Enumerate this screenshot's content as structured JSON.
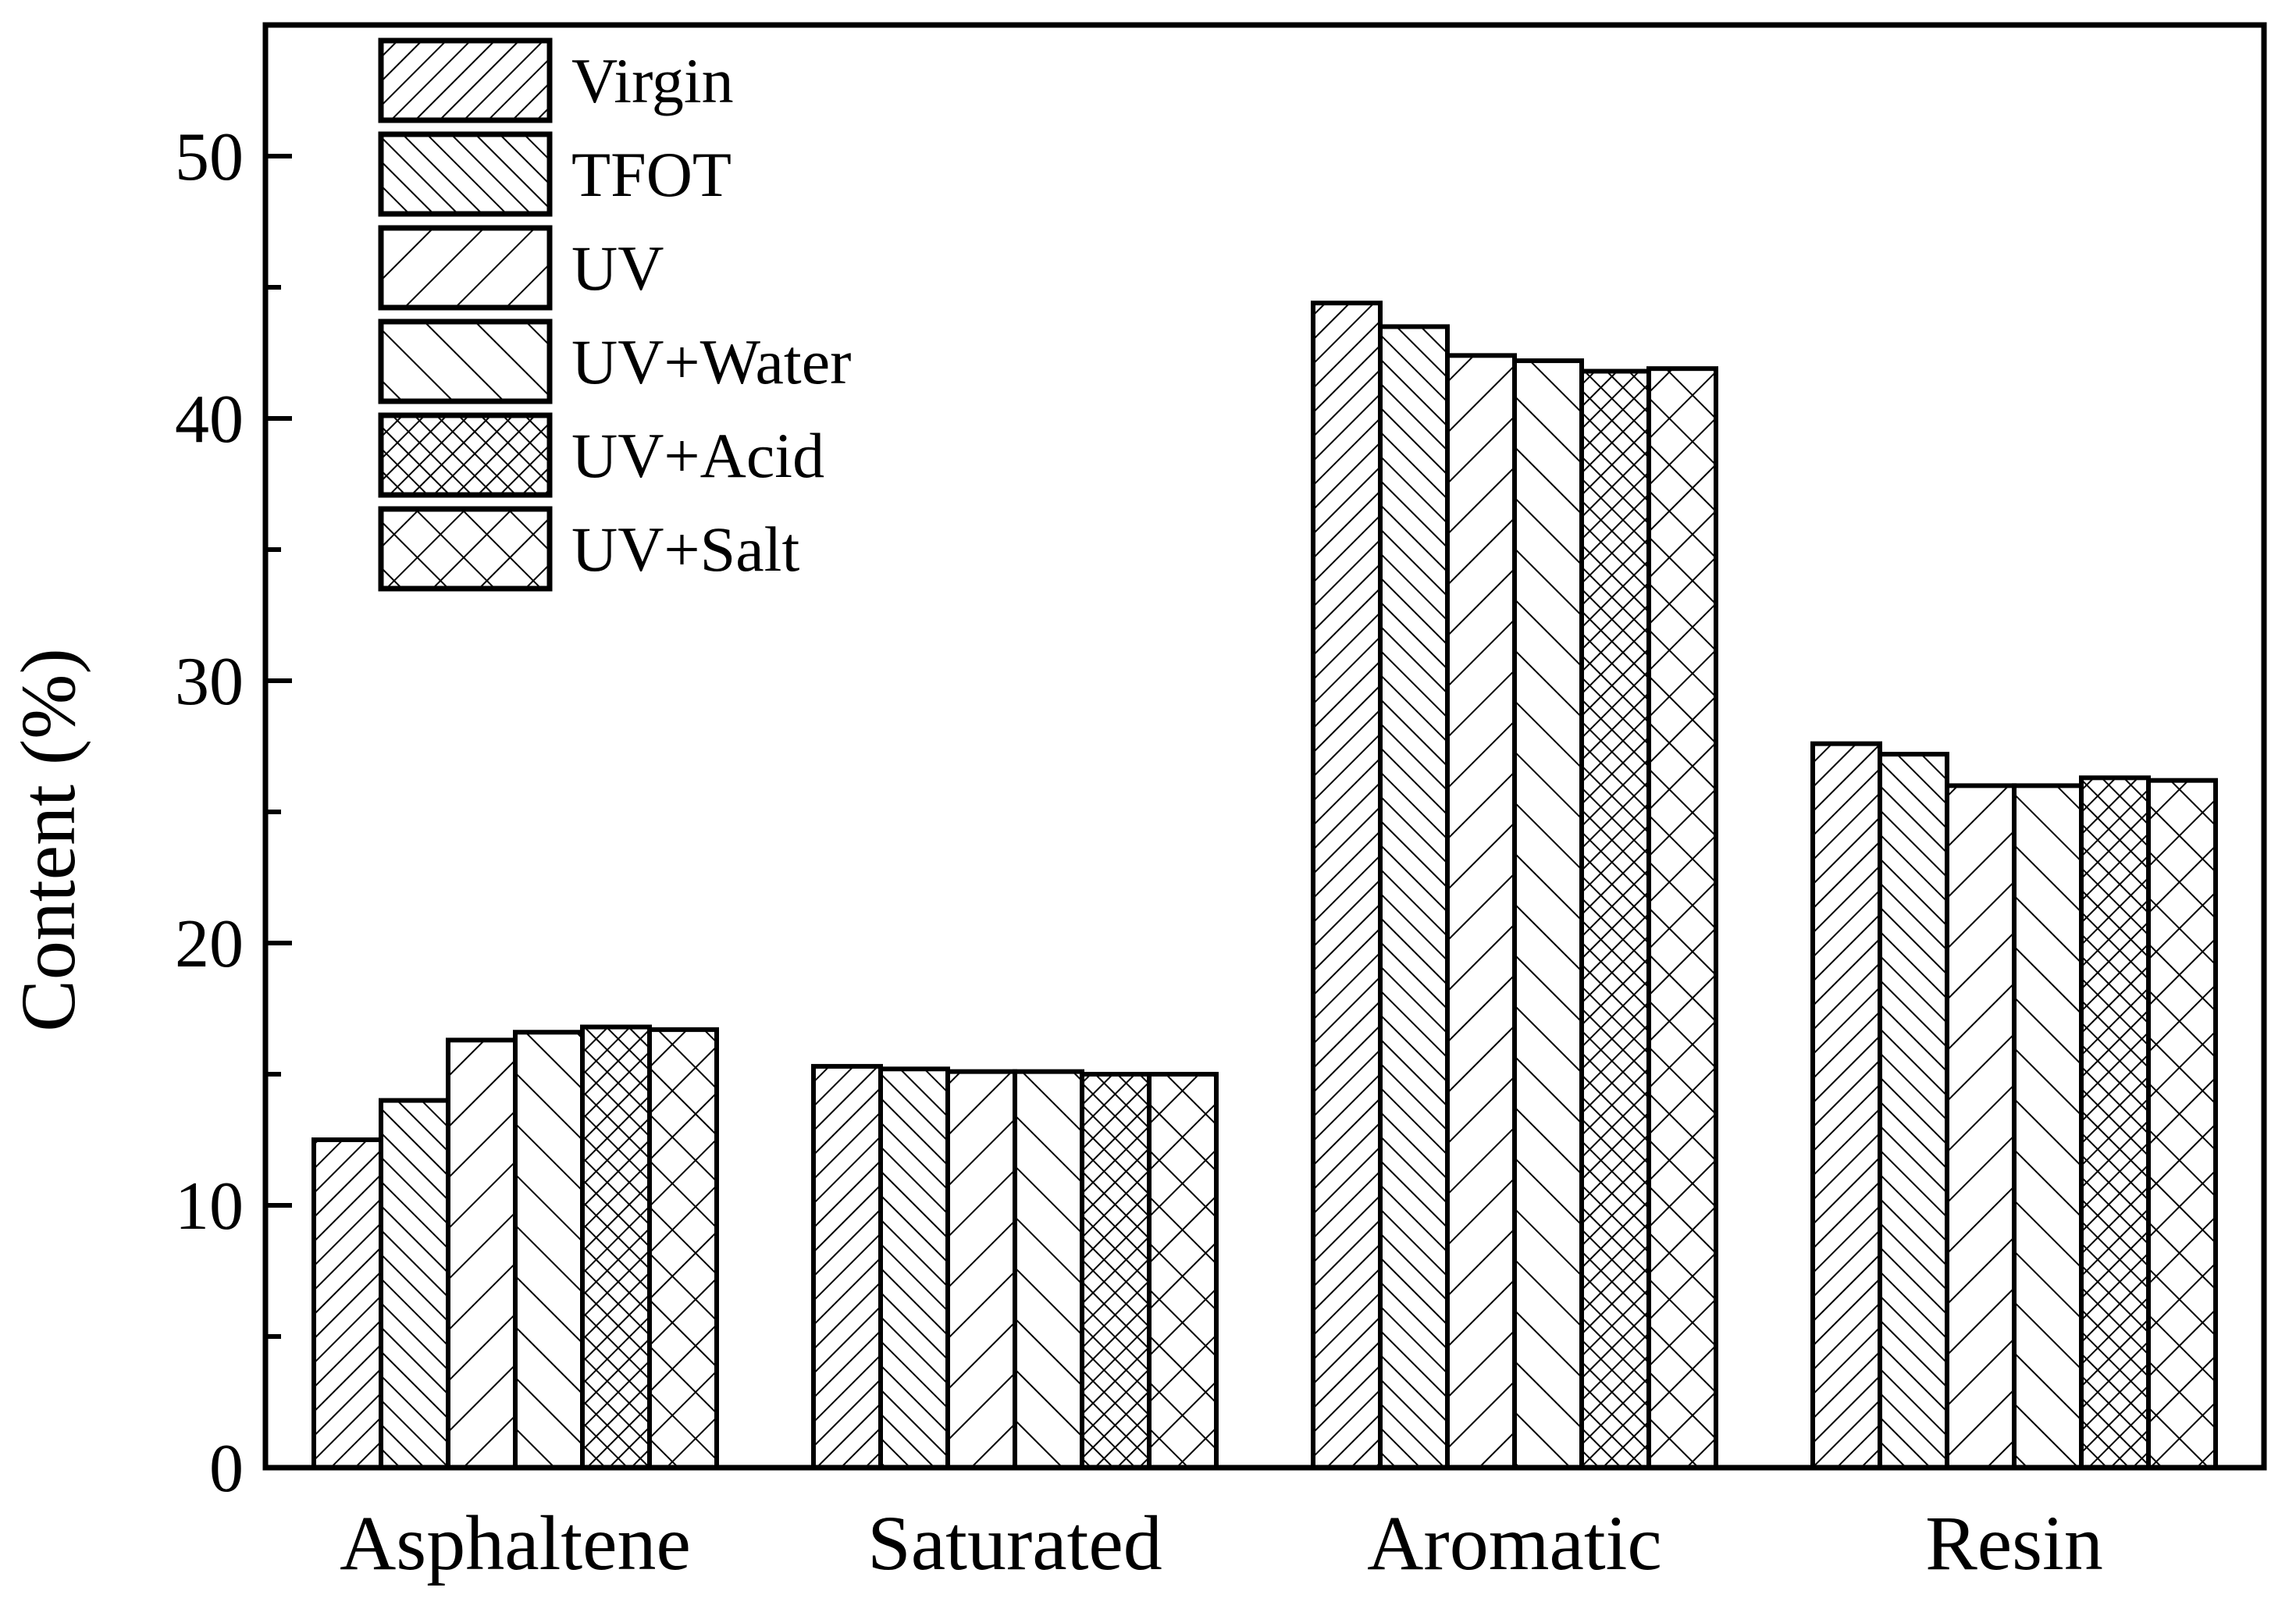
{
  "chart_data": {
    "type": "bar",
    "title": "",
    "xlabel": "",
    "ylabel": "Content (%)",
    "ylim": [
      0,
      55
    ],
    "yticks": [
      0,
      10,
      20,
      30,
      40,
      50
    ],
    "grid": false,
    "legend_position": "top-left",
    "categories": [
      "Asphaltene",
      "Saturated",
      "Aromatic",
      "Resin"
    ],
    "series": [
      {
        "name": "Virgin",
        "pattern": "diag-right-dense",
        "values": [
          12.5,
          15.3,
          44.4,
          27.6
        ]
      },
      {
        "name": "TFOT",
        "pattern": "diag-left-dense",
        "values": [
          14.0,
          15.2,
          43.5,
          27.2
        ]
      },
      {
        "name": "UV",
        "pattern": "diag-right-sparse",
        "values": [
          16.3,
          15.1,
          42.4,
          26.0
        ]
      },
      {
        "name": "UV+Water",
        "pattern": "diag-left-sparse",
        "values": [
          16.6,
          15.1,
          42.2,
          26.0
        ]
      },
      {
        "name": "UV+Acid",
        "pattern": "crosshatch-dense",
        "values": [
          16.8,
          15.0,
          41.8,
          26.3
        ]
      },
      {
        "name": "UV+Salt",
        "pattern": "crosshatch-sparse",
        "values": [
          16.7,
          15.0,
          41.9,
          26.2
        ]
      }
    ],
    "colors": {
      "stroke": "#000000",
      "fill": "#ffffff"
    }
  }
}
